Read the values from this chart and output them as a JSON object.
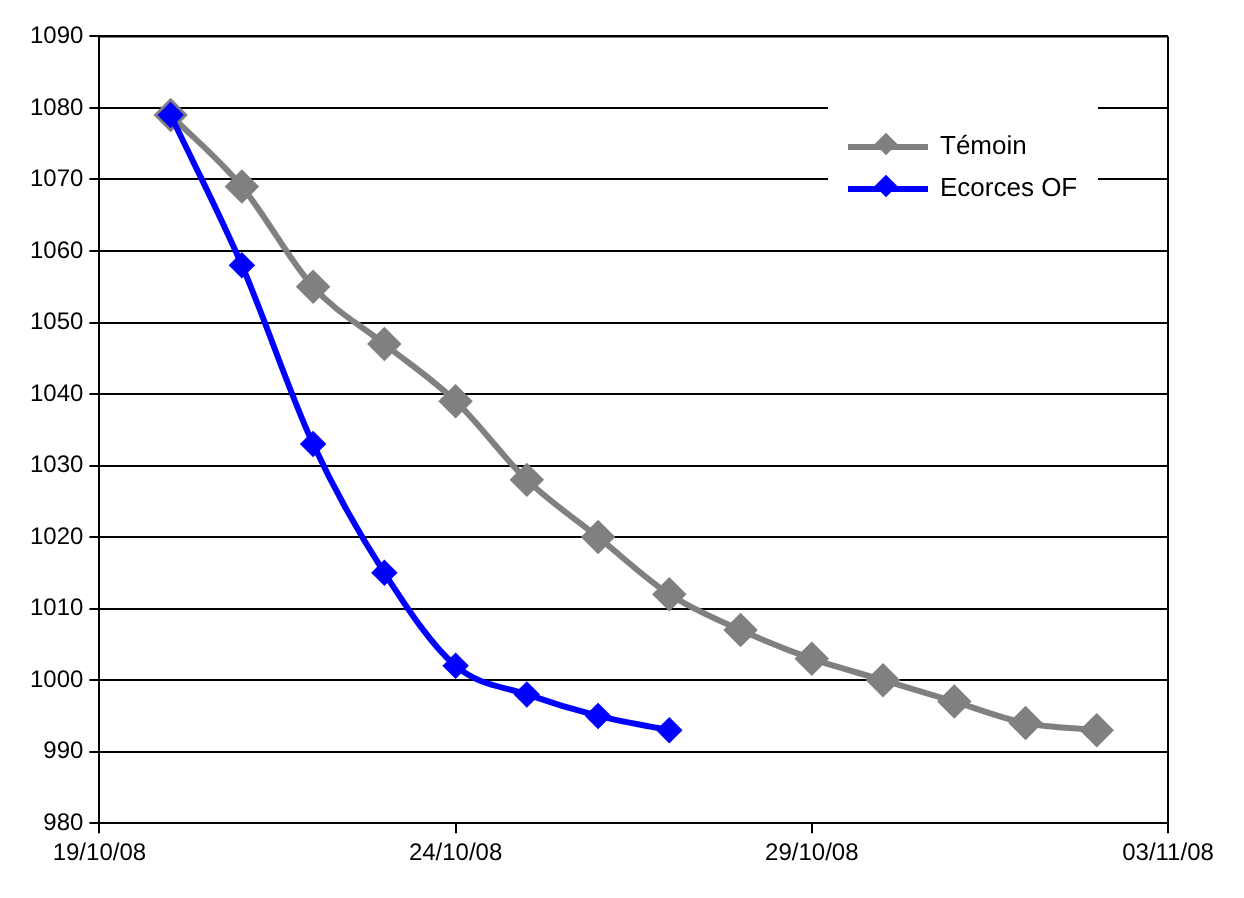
{
  "chart_data": {
    "type": "line",
    "x": [
      "--10-20",
      "--10-21",
      "--10-22",
      "--10-23",
      "--10-24",
      "--10-25",
      "--10-26",
      "--10-27",
      "--10-28",
      "--10-29",
      "--10-30",
      "--10-31",
      "--11-01",
      "--11-02"
    ],
    "series": [
      {
        "name": "Témoin",
        "color": "#808080",
        "values": [
          1079,
          1069,
          1055,
          1047,
          1039,
          1028,
          1020,
          1012,
          1007,
          1003,
          1000,
          997,
          994,
          993
        ]
      },
      {
        "name": "Ecorces OF",
        "color": "#0000ff",
        "values": [
          1079,
          1058,
          1033,
          1015,
          1002,
          998,
          995,
          993,
          null,
          null,
          null,
          null,
          null,
          null
        ]
      }
    ],
    "xlim": [
      "--10-19",
      "--11-03"
    ],
    "xticks": [
      {
        "value": "--10-19",
        "label": "19/10/08"
      },
      {
        "value": "--10-24",
        "label": "24/10/08"
      },
      {
        "value": "--10-29",
        "label": "29/10/08"
      },
      {
        "value": "--11-03",
        "label": "03/11/08"
      }
    ],
    "ylim": [
      980,
      1090
    ],
    "yticks": [
      980,
      990,
      1000,
      1010,
      1020,
      1030,
      1040,
      1050,
      1060,
      1070,
      1080,
      1090
    ],
    "grid": "y",
    "legend": "top right",
    "marker": "diamond",
    "line_style": "solid"
  }
}
